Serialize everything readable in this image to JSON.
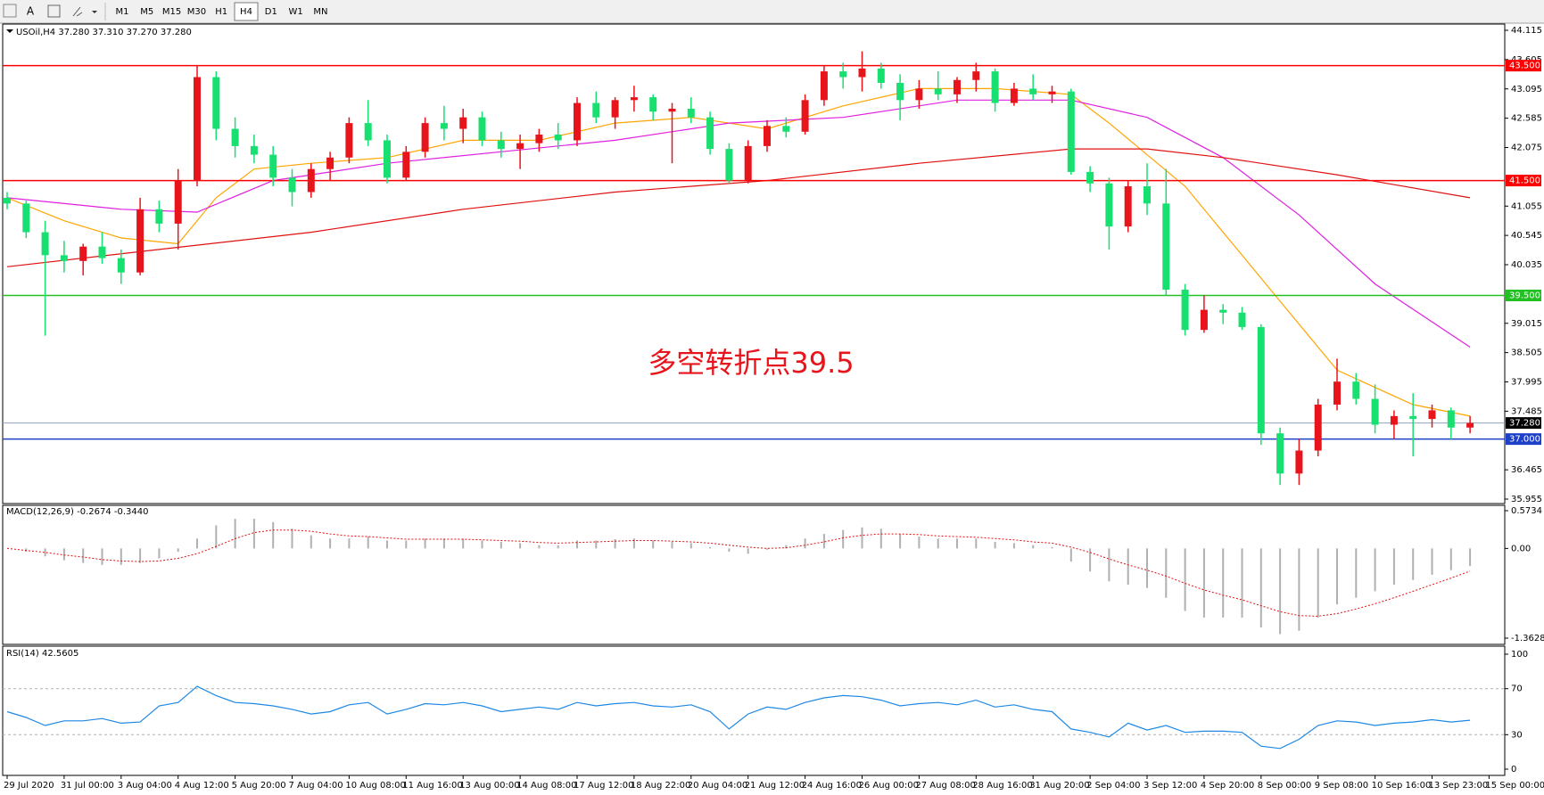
{
  "toolbar": {
    "font_tool": "A",
    "timeframes": [
      "M1",
      "M5",
      "M15",
      "M30",
      "H1",
      "H4",
      "D1",
      "W1",
      "MN"
    ],
    "active": 5
  },
  "chart_data": [
    {
      "type": "candlestick",
      "header": "USOil,H4  37.280 37.310 37.270 37.280",
      "annotation": "多空转折点39.5",
      "up_color": "#e8141c",
      "down_color": "#18e070",
      "ylim": [
        35.955,
        44.115
      ],
      "yticks": [
        44.115,
        43.605,
        43.095,
        42.585,
        42.075,
        41.055,
        40.545,
        40.035,
        39.015,
        38.505,
        37.995,
        37.485,
        36.465,
        35.955
      ],
      "grid": false,
      "levels": [
        {
          "value": 43.5,
          "label": "43.500",
          "color": "#ff0000",
          "label_bg": "#ff0000"
        },
        {
          "value": 41.5,
          "label": "41.500",
          "color": "#ff0000",
          "label_bg": "#ff0000"
        },
        {
          "value": 39.5,
          "label": "39.500",
          "color": "#22c022",
          "label_bg": "#22c022"
        },
        {
          "value": 37.28,
          "label": "37.280",
          "color": "#8fa0b4",
          "label_bg": "#000000"
        },
        {
          "value": 37,
          "label": "37.000",
          "color": "#1e40c8",
          "label_bg": "#1e40c8"
        }
      ],
      "categories": [
        "29 Jul 2020",
        null,
        null,
        "31 Jul 00:00",
        null,
        null,
        "3 Aug 04:00",
        null,
        null,
        "4 Aug 12:00",
        null,
        null,
        "5 Aug 20:00",
        null,
        null,
        "7 Aug 04:00",
        null,
        null,
        "10 Aug 08:00",
        null,
        null,
        "11 Aug 16:00",
        null,
        null,
        "13 Aug 00:00",
        null,
        null,
        "14 Aug 08:00",
        null,
        null,
        "17 Aug 12:00",
        null,
        null,
        "18 Aug 22:00",
        null,
        null,
        "20 Aug 04:00",
        null,
        null,
        "21 Aug 12:00",
        null,
        null,
        "24 Aug 16:00",
        null,
        null,
        "26 Aug 00:00",
        null,
        null,
        "27 Aug 08:00",
        null,
        null,
        "28 Aug 16:00",
        null,
        null,
        "31 Aug 20:00",
        null,
        null,
        "2 Sep 04:00",
        null,
        null,
        "3 Sep 12:00",
        null,
        null,
        "4 Sep 20:00",
        null,
        null,
        "8 Sep 00:00",
        null,
        null,
        "9 Sep 08:00",
        null,
        null,
        "10 Sep 16:00",
        null,
        null,
        "13 Sep 23:00",
        null,
        null,
        "15 Sep 00:00"
      ],
      "ohlc": [
        [
          41.2,
          41.3,
          41.0,
          41.1
        ],
        [
          41.1,
          41.15,
          40.5,
          40.6
        ],
        [
          40.6,
          40.8,
          38.8,
          40.2
        ],
        [
          40.2,
          40.45,
          39.9,
          40.1
        ],
        [
          40.1,
          40.4,
          39.85,
          40.35
        ],
        [
          40.35,
          40.6,
          40.05,
          40.15
        ],
        [
          40.15,
          40.3,
          39.7,
          39.9
        ],
        [
          39.9,
          41.2,
          39.85,
          41.0
        ],
        [
          41.0,
          41.15,
          40.6,
          40.75
        ],
        [
          40.75,
          41.7,
          40.3,
          41.5
        ],
        [
          41.5,
          43.5,
          41.4,
          43.3
        ],
        [
          43.3,
          43.4,
          42.2,
          42.4
        ],
        [
          42.4,
          42.6,
          41.9,
          42.1
        ],
        [
          42.1,
          42.3,
          41.8,
          41.95
        ],
        [
          41.95,
          42.1,
          41.4,
          41.55
        ],
        [
          41.55,
          41.7,
          41.05,
          41.3
        ],
        [
          41.3,
          41.8,
          41.2,
          41.7
        ],
        [
          41.7,
          42.0,
          41.5,
          41.9
        ],
        [
          41.9,
          42.6,
          41.8,
          42.5
        ],
        [
          42.5,
          42.9,
          42.1,
          42.2
        ],
        [
          42.2,
          42.3,
          41.45,
          41.55
        ],
        [
          41.55,
          42.1,
          41.5,
          42.0
        ],
        [
          42.0,
          42.6,
          41.9,
          42.5
        ],
        [
          42.5,
          42.8,
          42.2,
          42.4
        ],
        [
          42.4,
          42.75,
          42.15,
          42.6
        ],
        [
          42.6,
          42.7,
          42.1,
          42.2
        ],
        [
          42.2,
          42.35,
          41.9,
          42.05
        ],
        [
          42.05,
          42.3,
          41.7,
          42.15
        ],
        [
          42.15,
          42.4,
          42.0,
          42.3
        ],
        [
          42.3,
          42.5,
          42.05,
          42.2
        ],
        [
          42.2,
          42.95,
          42.1,
          42.85
        ],
        [
          42.85,
          43.05,
          42.5,
          42.6
        ],
        [
          42.6,
          42.95,
          42.4,
          42.9
        ],
        [
          42.9,
          43.15,
          42.7,
          42.95
        ],
        [
          42.95,
          43.0,
          42.55,
          42.7
        ],
        [
          42.7,
          42.85,
          41.8,
          42.75
        ],
        [
          42.75,
          42.95,
          42.5,
          42.6
        ],
        [
          42.6,
          42.7,
          41.95,
          42.05
        ],
        [
          42.05,
          42.15,
          41.45,
          41.5
        ],
        [
          41.5,
          42.2,
          41.45,
          42.1
        ],
        [
          42.1,
          42.55,
          42.0,
          42.45
        ],
        [
          42.45,
          42.6,
          42.25,
          42.35
        ],
        [
          42.35,
          43.0,
          42.3,
          42.9
        ],
        [
          42.9,
          43.5,
          42.8,
          43.4
        ],
        [
          43.4,
          43.55,
          43.1,
          43.3
        ],
        [
          43.3,
          43.75,
          43.05,
          43.45
        ],
        [
          43.45,
          43.55,
          43.1,
          43.2
        ],
        [
          43.2,
          43.35,
          42.55,
          42.9
        ],
        [
          42.9,
          43.25,
          42.75,
          43.1
        ],
        [
          43.1,
          43.4,
          42.9,
          43.0
        ],
        [
          43.0,
          43.3,
          42.85,
          43.25
        ],
        [
          43.25,
          43.55,
          43.05,
          43.4
        ],
        [
          43.4,
          43.45,
          42.7,
          42.85
        ],
        [
          42.85,
          43.2,
          42.8,
          43.1
        ],
        [
          43.1,
          43.35,
          42.9,
          43.0
        ],
        [
          43.0,
          43.15,
          42.85,
          43.05
        ],
        [
          43.05,
          43.1,
          41.6,
          41.65
        ],
        [
          41.65,
          41.75,
          41.3,
          41.45
        ],
        [
          41.45,
          41.55,
          40.3,
          40.7
        ],
        [
          40.7,
          41.5,
          40.6,
          41.4
        ],
        [
          41.4,
          41.8,
          40.9,
          41.1
        ],
        [
          41.1,
          41.7,
          39.5,
          39.6
        ],
        [
          39.6,
          39.7,
          38.8,
          38.9
        ],
        [
          38.9,
          39.5,
          38.85,
          39.25
        ],
        [
          39.25,
          39.35,
          39.0,
          39.2
        ],
        [
          39.2,
          39.3,
          38.9,
          38.95
        ],
        [
          38.95,
          39.0,
          36.9,
          37.1
        ],
        [
          37.1,
          37.2,
          36.2,
          36.4
        ],
        [
          36.4,
          37.0,
          36.2,
          36.8
        ],
        [
          36.8,
          37.7,
          36.7,
          37.6
        ],
        [
          37.6,
          38.4,
          37.5,
          38.0
        ],
        [
          38.0,
          38.15,
          37.6,
          37.7
        ],
        [
          37.7,
          37.95,
          37.1,
          37.25
        ],
        [
          37.25,
          37.5,
          37.0,
          37.4
        ],
        [
          37.4,
          37.8,
          36.7,
          37.35
        ],
        [
          37.35,
          37.6,
          37.2,
          37.5
        ],
        [
          37.5,
          37.55,
          37.0,
          37.2
        ],
        [
          37.2,
          37.4,
          37.1,
          37.28
        ],
        null
      ],
      "series": [
        {
          "color": "#ffa500",
          "x": [
            0,
            3,
            6,
            9,
            11,
            13,
            16,
            20,
            24,
            28,
            32,
            36,
            40,
            44,
            48,
            52,
            56,
            58,
            62,
            66,
            70,
            74,
            77
          ],
          "values": [
            41.2,
            40.8,
            40.5,
            40.4,
            41.2,
            41.7,
            41.8,
            41.9,
            42.2,
            42.2,
            42.5,
            42.6,
            42.4,
            42.8,
            43.1,
            43.1,
            43.0,
            42.5,
            41.4,
            39.8,
            38.2,
            37.6,
            37.4
          ]
        },
        {
          "color": "#e020e0",
          "x": [
            0,
            6,
            10,
            14,
            20,
            26,
            32,
            38,
            44,
            50,
            56,
            60,
            64,
            68,
            72,
            77
          ],
          "values": [
            41.2,
            41.0,
            40.95,
            41.5,
            41.8,
            42.0,
            42.2,
            42.5,
            42.6,
            42.9,
            42.9,
            42.6,
            41.9,
            40.9,
            39.7,
            38.6
          ]
        },
        {
          "color": "#e01010",
          "x": [
            0,
            8,
            16,
            24,
            32,
            40,
            48,
            56,
            60,
            64,
            70,
            77
          ],
          "values": [
            40.0,
            40.3,
            40.6,
            41.0,
            41.3,
            41.5,
            41.8,
            42.05,
            42.05,
            41.9,
            41.6,
            41.2
          ]
        }
      ]
    },
    {
      "type": "macd",
      "header": "MACD(12,26,9) -0.2674 -0.3440",
      "ylim": [
        -1.3628,
        0.5734
      ],
      "yticks": [
        0.5734,
        {
          "value": 0,
          "label": "0.00"
        },
        -1.3628
      ],
      "grid": false,
      "series": [
        {
          "style": "histogram",
          "color": "#b0b0b0",
          "values": [
            0,
            -0.05,
            -0.12,
            -0.18,
            -0.22,
            -0.25,
            -0.25,
            -0.22,
            -0.15,
            -0.05,
            0.15,
            0.35,
            0.45,
            0.45,
            0.4,
            0.3,
            0.2,
            0.15,
            0.15,
            0.18,
            0.12,
            0.12,
            0.15,
            0.15,
            0.15,
            0.12,
            0.1,
            0.08,
            0.05,
            0.05,
            0.12,
            0.12,
            0.14,
            0.15,
            0.12,
            0.1,
            0.08,
            0.02,
            -0.05,
            -0.08,
            -0.02,
            0.05,
            0.15,
            0.22,
            0.28,
            0.32,
            0.3,
            0.22,
            0.18,
            0.15,
            0.15,
            0.15,
            0.1,
            0.08,
            0.05,
            0.02,
            -0.2,
            -0.35,
            -0.5,
            -0.55,
            -0.6,
            -0.75,
            -0.95,
            -1.05,
            -1.05,
            -1.05,
            -1.2,
            -1.3,
            -1.25,
            -1.05,
            -0.85,
            -0.75,
            -0.65,
            -0.55,
            -0.48,
            -0.4,
            -0.33,
            -0.2674,
            null
          ]
        },
        {
          "style": "dotted",
          "color": "#e01010",
          "values": [
            0,
            -0.03,
            -0.06,
            -0.1,
            -0.13,
            -0.17,
            -0.19,
            -0.2,
            -0.19,
            -0.15,
            -0.08,
            0.03,
            0.15,
            0.24,
            0.28,
            0.28,
            0.26,
            0.22,
            0.19,
            0.18,
            0.16,
            0.14,
            0.14,
            0.14,
            0.14,
            0.13,
            0.12,
            0.11,
            0.09,
            0.08,
            0.09,
            0.1,
            0.11,
            0.12,
            0.12,
            0.11,
            0.1,
            0.08,
            0.05,
            0.02,
            0.0,
            0.01,
            0.05,
            0.1,
            0.16,
            0.2,
            0.22,
            0.22,
            0.21,
            0.19,
            0.18,
            0.17,
            0.15,
            0.13,
            0.1,
            0.08,
            0.02,
            -0.06,
            -0.16,
            -0.25,
            -0.33,
            -0.42,
            -0.53,
            -0.63,
            -0.71,
            -0.78,
            -0.87,
            -0.96,
            -1.02,
            -1.03,
            -0.99,
            -0.92,
            -0.84,
            -0.75,
            -0.65,
            -0.55,
            -0.45,
            -0.344,
            null
          ]
        }
      ]
    },
    {
      "type": "line",
      "header": "RSI(14) 42.5605",
      "ylim": [
        0,
        100
      ],
      "yticks": [
        100,
        70,
        30,
        0
      ],
      "grid": true,
      "series": [
        {
          "color": "#1e88e5",
          "values": [
            50,
            45,
            38,
            42,
            42,
            44,
            40,
            41,
            55,
            58,
            72,
            64,
            58,
            57,
            55,
            52,
            48,
            50,
            56,
            58,
            48,
            52,
            57,
            56,
            58,
            55,
            50,
            52,
            54,
            52,
            58,
            55,
            57,
            58,
            55,
            54,
            56,
            50,
            35,
            48,
            54,
            52,
            58,
            62,
            64,
            63,
            60,
            55,
            57,
            58,
            56,
            60,
            54,
            56,
            52,
            50,
            35,
            32,
            28,
            40,
            34,
            38,
            32,
            33,
            33,
            32,
            20,
            18,
            26,
            38,
            42,
            41,
            38,
            40,
            41,
            43,
            41,
            42.5605,
            null
          ]
        }
      ]
    }
  ]
}
